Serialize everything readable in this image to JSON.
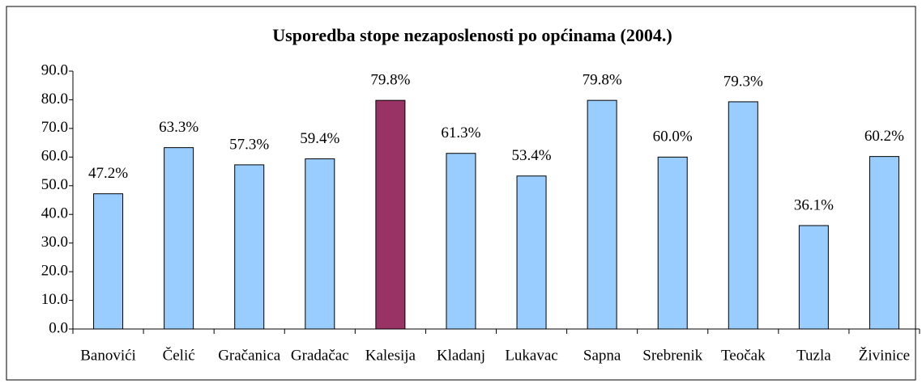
{
  "chart_data": {
    "type": "bar",
    "title": "Usporedba stope nezaposlenosti po općinama (2004.)",
    "categories": [
      "Banovići",
      "Čelić",
      "Gračanica",
      "Gradačac",
      "Kalesija",
      "Kladanj",
      "Lukavac",
      "Sapna",
      "Srebrenik",
      "Teočak",
      "Tuzla",
      "Živinice"
    ],
    "values": [
      47.2,
      63.3,
      57.3,
      59.4,
      79.8,
      61.3,
      53.4,
      79.8,
      60.0,
      79.3,
      36.1,
      60.2
    ],
    "value_labels": [
      "47.2%",
      "63.3%",
      "57.3%",
      "59.4%",
      "79.8%",
      "61.3%",
      "53.4%",
      "79.8%",
      "60.0%",
      "79.3%",
      "36.1%",
      "60.2%"
    ],
    "colors": [
      "#99ccff",
      "#99ccff",
      "#99ccff",
      "#99ccff",
      "#993366",
      "#99ccff",
      "#99ccff",
      "#99ccff",
      "#99ccff",
      "#99ccff",
      "#99ccff",
      "#99ccff"
    ],
    "ylim": [
      0,
      90
    ],
    "yticks": [
      {
        "value": 0,
        "label": "0.0"
      },
      {
        "value": 10,
        "label": "10.0"
      },
      {
        "value": 20,
        "label": "20.0"
      },
      {
        "value": 30,
        "label": "30.0"
      },
      {
        "value": 40,
        "label": "40.0"
      },
      {
        "value": 50,
        "label": "50.0"
      },
      {
        "value": 60,
        "label": "60.0"
      },
      {
        "value": 70,
        "label": "70.0"
      },
      {
        "value": 80,
        "label": "80.0"
      },
      {
        "value": 90,
        "label": "90.0"
      }
    ],
    "grid": false
  }
}
